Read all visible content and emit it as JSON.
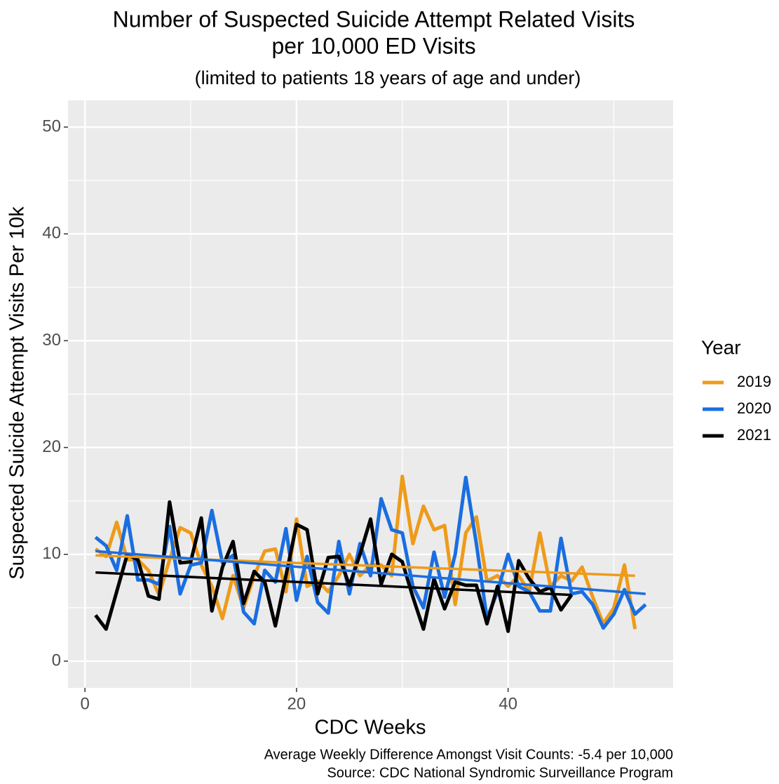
{
  "chart_data": {
    "type": "line",
    "title": [
      "Number of Suspected Suicide Attempt Related Visits",
      "per 10,000 ED Visits"
    ],
    "subtitle": "(limited to patients 18 years of age and under)",
    "x_label": "CDC Weeks",
    "y_label": "Suspected Suicide Attempt Visits Per 10k",
    "caption": [
      "Average Weekly Difference Amongst Visit Counts: -5.4 per 10,000",
      "Source: CDC National Syndromic Surveillance Program"
    ],
    "legend_title": "Year",
    "legend_position": "right",
    "grid": true,
    "x": [
      1,
      2,
      3,
      4,
      5,
      6,
      7,
      8,
      9,
      10,
      11,
      12,
      13,
      14,
      15,
      16,
      17,
      18,
      19,
      20,
      21,
      22,
      23,
      24,
      25,
      26,
      27,
      28,
      29,
      30,
      31,
      32,
      33,
      34,
      35,
      36,
      37,
      38,
      39,
      40,
      41,
      42,
      43,
      44,
      45,
      46,
      47,
      48,
      49,
      50,
      51,
      52,
      53
    ],
    "xlim": [
      -1.6,
      55.6
    ],
    "xticks": [
      0,
      20,
      40
    ],
    "ylim": [
      -2.5,
      52.5
    ],
    "yticks": [
      0,
      10,
      20,
      30,
      40,
      50
    ],
    "series": [
      {
        "name": "2019",
        "color": "#EE9B1A",
        "values": [
          10.5,
          9.8,
          13,
          9.5,
          9.5,
          8.5,
          6.2,
          9.5,
          12.5,
          12,
          9,
          7,
          4,
          8,
          5,
          8,
          10.3,
          10.5,
          6.5,
          13.3,
          7,
          7.5,
          6.5,
          8,
          10,
          8,
          9,
          9,
          8,
          17.3,
          11,
          14.5,
          12.3,
          12.7,
          5.3,
          12,
          13.5,
          7.5,
          8,
          7,
          8,
          6.5,
          12,
          7,
          8,
          7.5,
          8.8,
          6,
          3.5,
          5,
          9,
          3,
          null
        ],
        "trend": {
          "x": [
            1,
            52
          ],
          "values": [
            9.9,
            8.0
          ]
        }
      },
      {
        "name": "2020",
        "color": "#1A6EE0",
        "values": [
          11.6,
          10.8,
          8.5,
          13.6,
          7.6,
          7.6,
          7.2,
          12.6,
          6.3,
          9,
          9.2,
          14.1,
          9.2,
          9.9,
          4.6,
          3.5,
          8.5,
          7.4,
          12.4,
          5.7,
          9.8,
          5.5,
          4.5,
          11.2,
          6.3,
          11,
          8,
          15.2,
          12.3,
          12,
          7,
          5,
          10.2,
          6,
          10,
          17.2,
          11,
          4,
          6.5,
          10,
          7,
          6.5,
          4.7,
          4.7,
          11.5,
          6.3,
          6.5,
          5.3,
          3.1,
          4.4,
          6.7,
          4.4,
          5.3
        ],
        "trend": {
          "x": [
            1,
            53
          ],
          "values": [
            10.3,
            6.3
          ]
        }
      },
      {
        "name": "2021",
        "color": "#000000",
        "values": [
          4.3,
          3,
          6.5,
          10,
          9.5,
          6.1,
          5.8,
          14.9,
          9.2,
          9.3,
          13.4,
          4.7,
          8.8,
          11.2,
          5.4,
          8.4,
          7.4,
          3.3,
          8,
          12.8,
          12.3,
          6.3,
          9.7,
          9.8,
          7.1,
          10,
          13.3,
          7.2,
          10,
          9.3,
          6,
          3,
          7.7,
          4.9,
          7.4,
          7.1,
          7.1,
          3.5,
          7,
          2.8,
          9.4,
          7.7,
          6.5,
          6.9,
          4.8,
          6.2,
          null,
          null,
          null,
          null,
          null,
          null,
          null
        ],
        "trend": {
          "x": [
            1,
            46
          ],
          "values": [
            8.3,
            6.2
          ]
        }
      }
    ]
  }
}
